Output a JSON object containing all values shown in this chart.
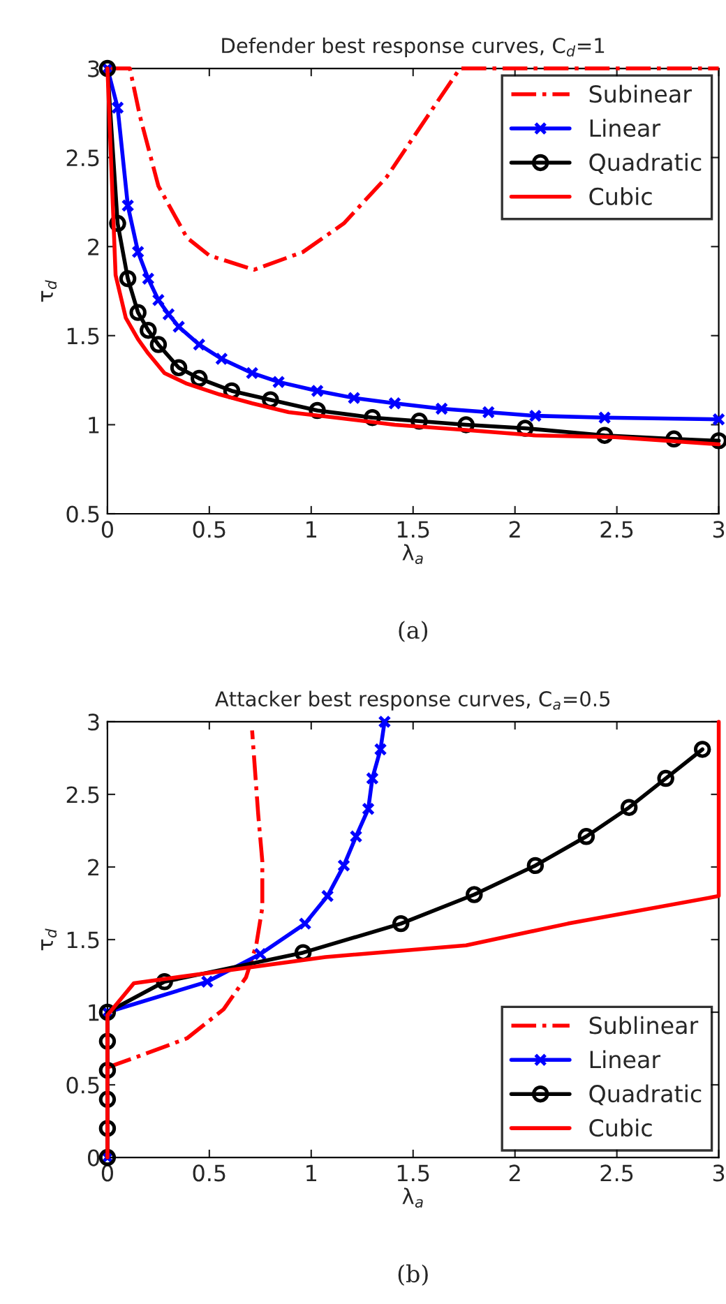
{
  "chart_data": [
    {
      "type": "line",
      "title": "Defender best response curves, C$_{d}$=1",
      "xlabel": "λ$_{a}$",
      "ylabel": "τ$_{d}$",
      "annotations": [
        "(a)"
      ],
      "xlim": [
        0,
        3
      ],
      "ylim": [
        0.5,
        3
      ],
      "xticks": [
        0,
        0.5,
        1,
        1.5,
        2,
        2.5,
        3
      ],
      "yticks": [
        0.5,
        1,
        1.5,
        2,
        2.5,
        3
      ],
      "grid": false,
      "legend": "top right",
      "series": [
        {
          "name": "Subinear",
          "color": "#ff0000",
          "line_style": "dashdot",
          "marker": "none",
          "x": [
            0,
            0.11,
            0.16,
            0.25,
            0.39,
            0.5,
            0.72,
            0.96,
            1.16,
            1.37,
            1.57,
            1.73,
            3
          ],
          "values": [
            3,
            3,
            2.73,
            2.34,
            2.05,
            1.95,
            1.87,
            1.97,
            2.13,
            2.39,
            2.73,
            3,
            3
          ]
        },
        {
          "name": "Linear",
          "color": "#0000ff",
          "line_style": "solid",
          "marker": "cross",
          "x": [
            0,
            0.05,
            0.1,
            0.15,
            0.2,
            0.25,
            0.3,
            0.35,
            0.45,
            0.56,
            0.71,
            0.84,
            1.03,
            1.21,
            1.41,
            1.64,
            1.87,
            2.1,
            2.44,
            3
          ],
          "values": [
            3,
            2.78,
            2.23,
            1.97,
            1.82,
            1.7,
            1.62,
            1.55,
            1.45,
            1.37,
            1.29,
            1.24,
            1.19,
            1.15,
            1.12,
            1.09,
            1.07,
            1.05,
            1.04,
            1.03
          ]
        },
        {
          "name": "Quadratic",
          "color": "#000000",
          "line_style": "solid",
          "marker": "circle",
          "x": [
            0,
            0.05,
            0.1,
            0.15,
            0.2,
            0.25,
            0.35,
            0.45,
            0.61,
            0.8,
            1.03,
            1.3,
            1.53,
            1.76,
            2.05,
            2.44,
            2.78,
            3
          ],
          "values": [
            3,
            2.13,
            1.82,
            1.63,
            1.53,
            1.45,
            1.32,
            1.26,
            1.19,
            1.14,
            1.08,
            1.04,
            1.02,
            1.0,
            0.98,
            0.94,
            0.92,
            0.91
          ]
        },
        {
          "name": "Cubic",
          "color": "#ff0000",
          "line_style": "solid",
          "marker": "none",
          "x": [
            0,
            0.04,
            0.09,
            0.15,
            0.2,
            0.28,
            0.39,
            0.55,
            0.71,
            0.89,
            1.12,
            1.41,
            1.76,
            2.1,
            2.49,
            3
          ],
          "values": [
            3,
            1.84,
            1.6,
            1.48,
            1.4,
            1.29,
            1.23,
            1.17,
            1.12,
            1.07,
            1.04,
            1.0,
            0.97,
            0.94,
            0.93,
            0.89
          ]
        }
      ]
    },
    {
      "type": "line",
      "title": "Attacker best response curves, C$_{a}$=0.5",
      "xlabel": "λ$_{a}$",
      "ylabel": "τ$_{d}$",
      "annotations": [
        "(b)"
      ],
      "xlim": [
        0,
        3
      ],
      "ylim": [
        0,
        3
      ],
      "xticks": [
        0,
        0.5,
        1,
        1.5,
        2,
        2.5,
        3
      ],
      "yticks": [
        0,
        0.5,
        1,
        1.5,
        2,
        2.5,
        3
      ],
      "grid": false,
      "legend": "bottom right",
      "series": [
        {
          "name": "Sublinear",
          "color": "#ff0000",
          "line_style": "dashdot",
          "marker": "none",
          "x": [
            0,
            0.16,
            0.39,
            0.57,
            0.68,
            0.73,
            0.76,
            0.76,
            0.74,
            0.71
          ],
          "values": [
            0.62,
            0.7,
            0.82,
            1.02,
            1.24,
            1.46,
            1.72,
            2.04,
            2.36,
            2.94
          ]
        },
        {
          "name": "Linear",
          "color": "#0000ff",
          "line_style": "solid",
          "marker": "cross",
          "x": [
            0,
            0,
            0.49,
            0.75,
            0.97,
            1.08,
            1.16,
            1.22,
            1.28,
            1.3,
            1.34,
            1.36
          ],
          "values": [
            0,
            1.0,
            1.21,
            1.4,
            1.61,
            1.8,
            2.01,
            2.21,
            2.4,
            2.61,
            2.81,
            3
          ]
        },
        {
          "name": "Quadratic",
          "color": "#000000",
          "line_style": "solid",
          "marker": "circle",
          "x": [
            0,
            0,
            0,
            0,
            0,
            0,
            0.28,
            0.96,
            1.44,
            1.8,
            2.1,
            2.35,
            2.56,
            2.74,
            2.92
          ],
          "values": [
            0,
            0.2,
            0.4,
            0.6,
            0.8,
            1.0,
            1.21,
            1.41,
            1.61,
            1.81,
            2.01,
            2.21,
            2.41,
            2.61,
            2.81
          ]
        },
        {
          "name": "Cubic",
          "color": "#ff0000",
          "line_style": "solid",
          "marker": "none",
          "x": [
            0,
            0,
            0.13,
            1.07,
            1.76,
            2.26,
            3,
            3
          ],
          "values": [
            0,
            0.98,
            1.2,
            1.38,
            1.46,
            1.61,
            1.8,
            3
          ]
        }
      ]
    }
  ]
}
